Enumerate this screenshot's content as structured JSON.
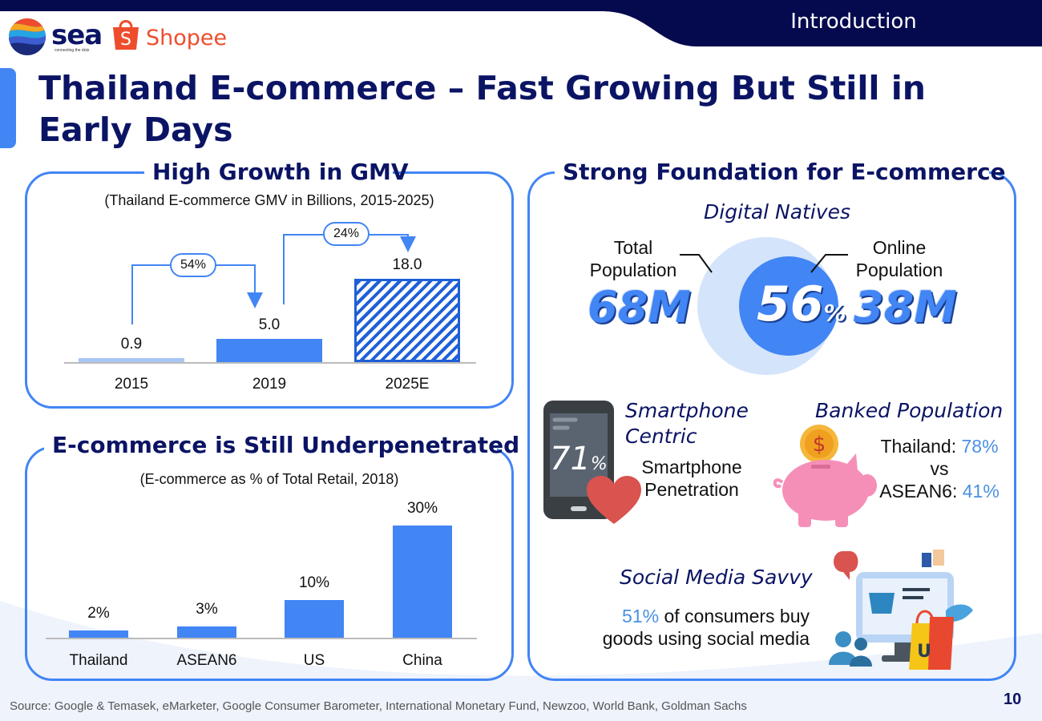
{
  "header": {
    "section_label": "Introduction",
    "sea_logo_text": "sea",
    "sea_tagline": "connecting the dots",
    "shopee_logo_text": "Shopee",
    "shopee_bag_letter": "S"
  },
  "title": "Thailand E-commerce – Fast Growing But Still in Early Days",
  "gmv_panel": {
    "title": "High Growth in GMV",
    "subtitle": "(Thailand E-commerce GMV in Billions, 2015-2025)",
    "growth_labels": [
      "54%",
      "24%"
    ]
  },
  "penetration_panel": {
    "title": "E-commerce is Still Underpenetrated",
    "subtitle": "(E-commerce as % of Total Retail, 2018)"
  },
  "chart_data": [
    {
      "type": "bar",
      "title": "High Growth in GMV",
      "subtitle": "(Thailand E-commerce GMV in Billions, 2015-2025)",
      "categories": [
        "2015",
        "2019",
        "2025E"
      ],
      "values": [
        0.9,
        5.0,
        18.0
      ],
      "value_labels": [
        "0.9",
        "5.0",
        "18.0"
      ],
      "annotations": [
        "54%",
        "24%"
      ],
      "forecast_category": "2025E",
      "ylim": [
        0,
        18.0
      ],
      "grid": false,
      "colors": {
        "bar": "#4285f4",
        "first_bar": "#a8c7f5"
      }
    },
    {
      "type": "bar",
      "title": "E-commerce is Still Underpenetrated",
      "subtitle": "(E-commerce as % of Total Retail, 2018)",
      "categories": [
        "Thailand",
        "ASEAN6",
        "US",
        "China"
      ],
      "values": [
        2,
        3,
        10,
        30
      ],
      "value_labels": [
        "2%",
        "3%",
        "10%",
        "30%"
      ],
      "ylim": [
        0,
        30
      ],
      "grid": false,
      "colors": {
        "bar": "#4285f4"
      }
    }
  ],
  "foundation_panel": {
    "title": "Strong Foundation for E-commerce",
    "digital_natives": {
      "heading": "Digital Natives",
      "total_label_1": "Total",
      "total_label_2": "Population",
      "total_value": "68M",
      "online_label_1": "Online",
      "online_label_2": "Population",
      "online_value": "38M",
      "share_value": "56",
      "share_unit": "%"
    },
    "smartphone": {
      "heading_1": "Smartphone",
      "heading_2": "Centric",
      "value": "71",
      "unit": "%",
      "label_1": "Smartphone",
      "label_2": "Penetration"
    },
    "banked": {
      "heading": "Banked Population",
      "thailand_label": "Thailand: ",
      "thailand_value": "78%",
      "vs": "vs",
      "asean_label": "ASEAN6: ",
      "asean_value": "41%",
      "coin_symbol": "$"
    },
    "social": {
      "heading": "Social Media Savvy",
      "value": "51%",
      "text_1": " of consumers buy",
      "text_2": "goods using social media",
      "bag_letter": "U"
    }
  },
  "footer": {
    "source": "Source: Google & Temasek, eMarketer, Google Consumer Barometer, International Monetary Fund, Newzoo, World Bank, Goldman Sachs",
    "page_number": "10"
  },
  "colors": {
    "navy": "#0b1464",
    "accent_blue": "#4285f4",
    "light_blue": "#a8c7f5",
    "highlight_blue": "#4a90e2",
    "shopee_orange": "#ee4d2d"
  }
}
